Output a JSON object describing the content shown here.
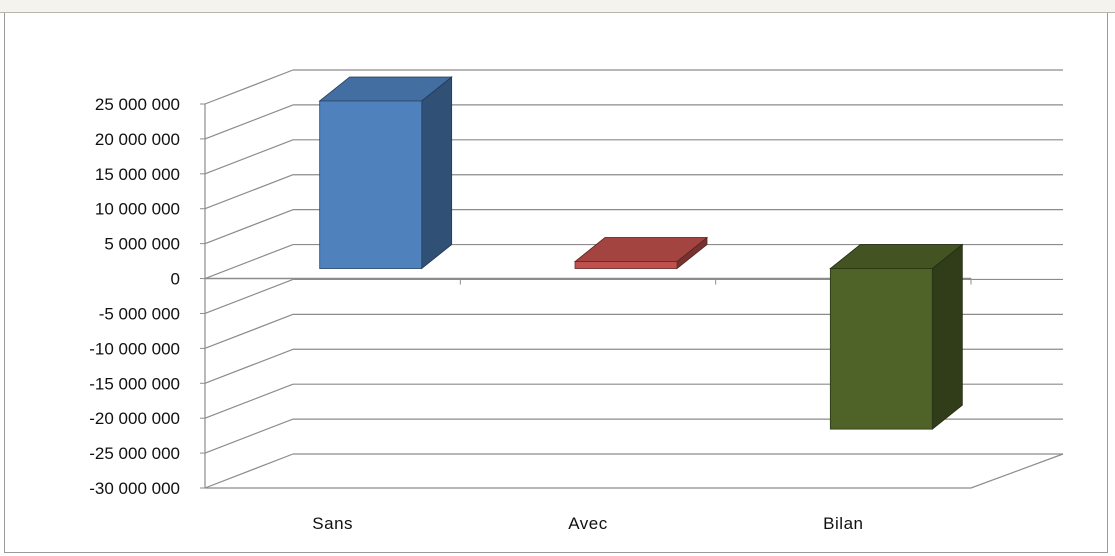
{
  "chart_data": {
    "type": "bar",
    "subtype": "3d-column",
    "title": "",
    "xlabel": "",
    "ylabel": "",
    "categories": [
      "Sans",
      "Avec",
      "Bilan"
    ],
    "values": [
      24000000,
      1000000,
      -23000000
    ],
    "colors": [
      "#4f81bd",
      "#c0504d",
      "#4f6228"
    ],
    "ylim": [
      -30000000,
      25000000
    ],
    "yticks": [
      25000000,
      20000000,
      15000000,
      10000000,
      5000000,
      0,
      -5000000,
      -10000000,
      -15000000,
      -20000000,
      -25000000,
      -30000000
    ],
    "ytick_labels": [
      "25 000 000",
      "20 000 000",
      "15 000 000",
      "10 000 000",
      "5 000 000",
      "0",
      "-5 000 000",
      "-10 000 000",
      "-15 000 000",
      "-20 000 000",
      "-25 000 000",
      "-30 000 000"
    ],
    "grid": true,
    "legend": "none"
  }
}
